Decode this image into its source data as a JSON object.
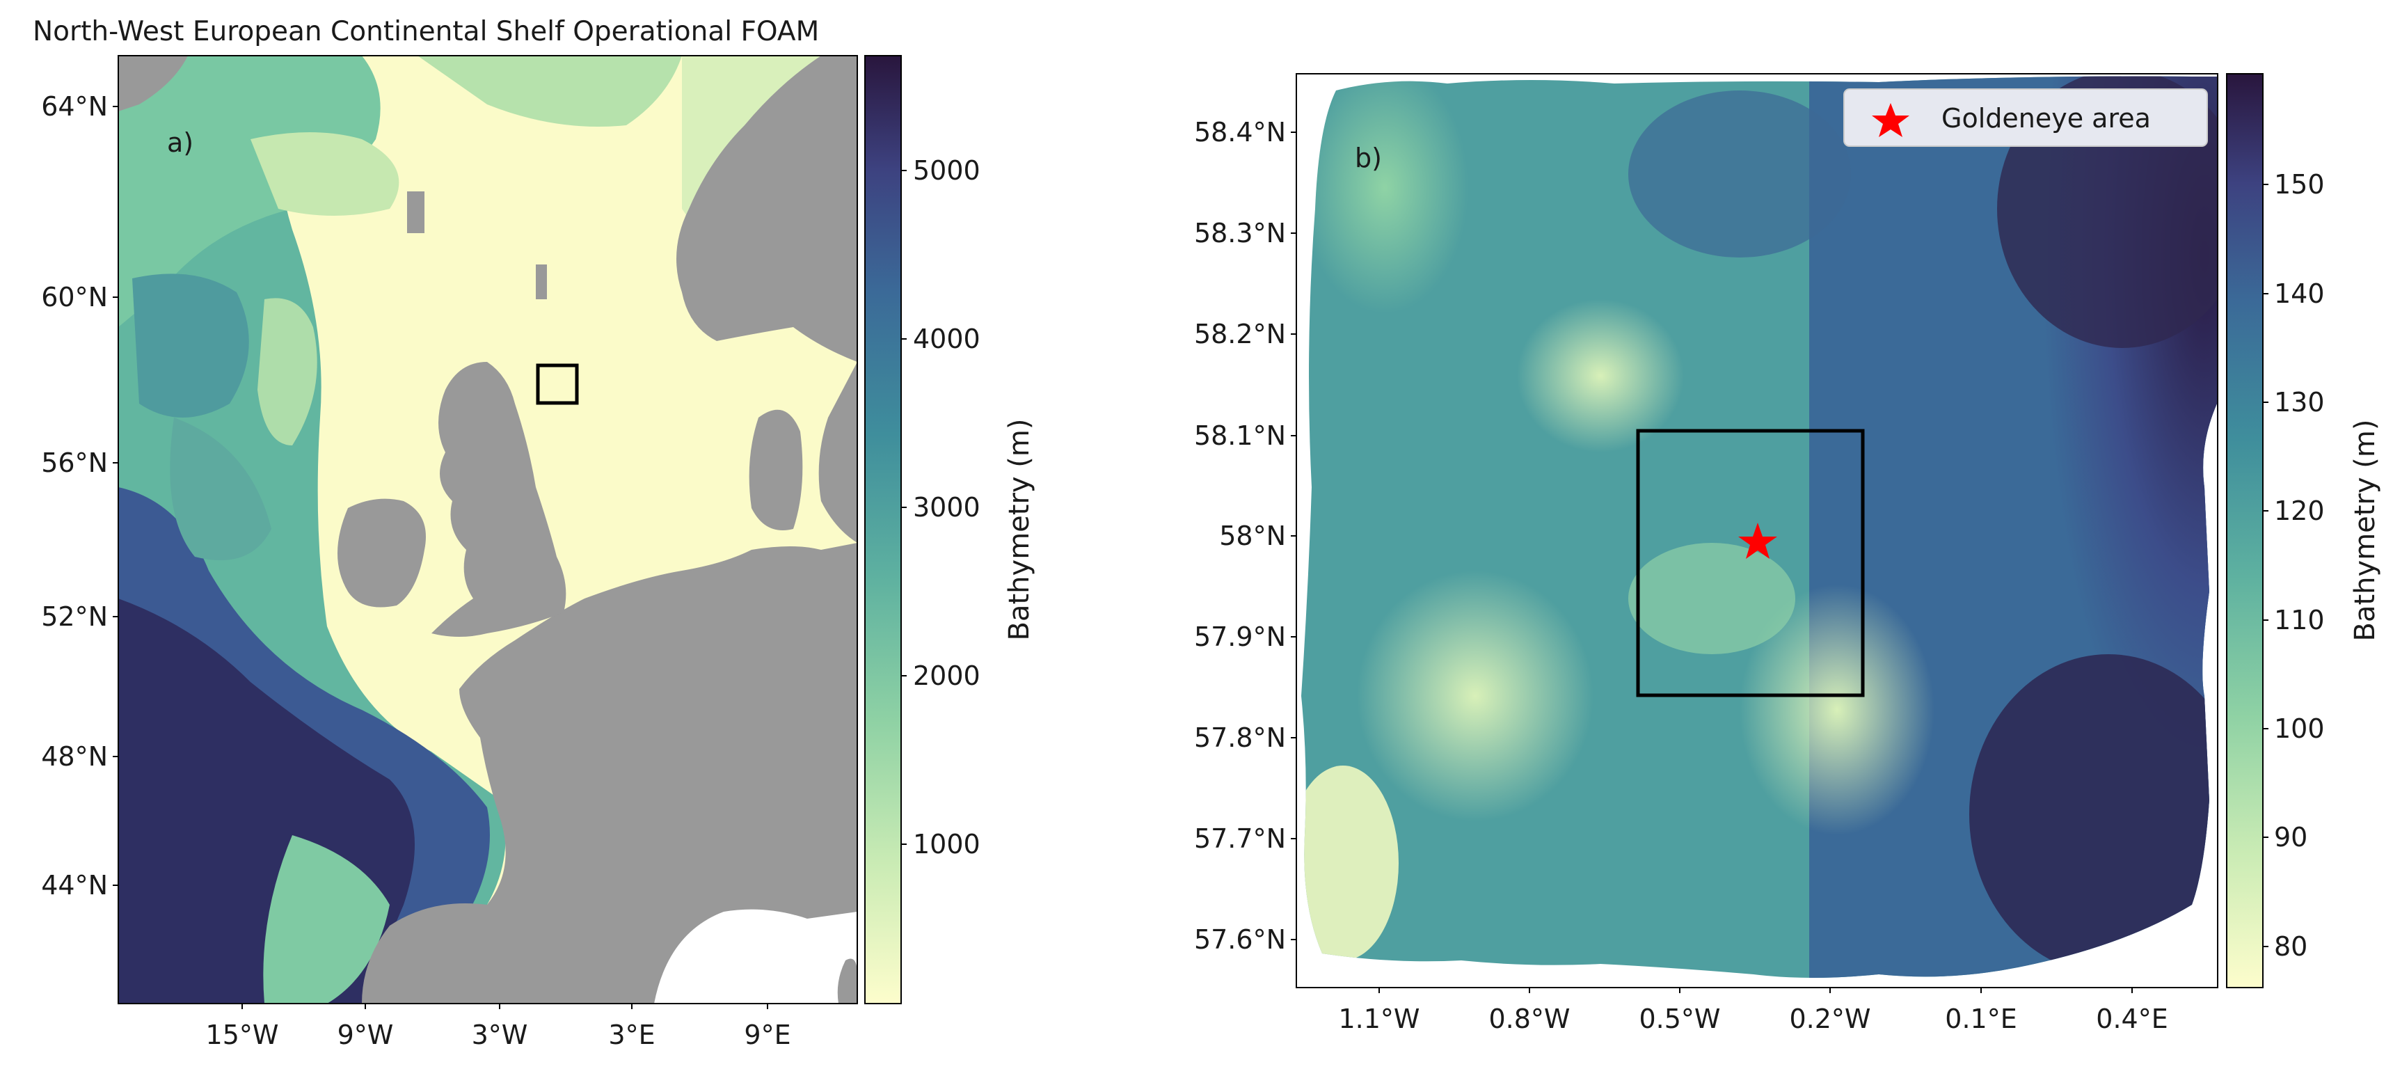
{
  "title": "North-West European Continental Shelf Operational FOAM",
  "panel_a": {
    "label": "a)",
    "x_ticks": [
      "15°W",
      "9°W",
      "3°W",
      "3°E",
      "9°E"
    ],
    "y_ticks": [
      "64°N",
      "60°N",
      "56°N",
      "52°N",
      "48°N",
      "44°N"
    ],
    "colorbar": {
      "label": "Bathymetry (m)",
      "ticks": [
        "5000",
        "4000",
        "3000",
        "2000",
        "1000"
      ],
      "range": [
        0,
        5600
      ],
      "colormap": "deep"
    },
    "inset_box": {
      "lon_range": [
        -1.2,
        0.5
      ],
      "lat_range": [
        57.6,
        58.4
      ]
    }
  },
  "panel_b": {
    "label": "b)",
    "x_ticks": [
      "1.1°W",
      "0.8°W",
      "0.5°W",
      "0.2°W",
      "0.1°E",
      "0.4°E"
    ],
    "y_ticks": [
      "58.4°N",
      "58.3°N",
      "58.2°N",
      "58.1°N",
      "58°N",
      "57.9°N",
      "57.8°N",
      "57.7°N",
      "57.6°N"
    ],
    "colorbar": {
      "label": "Bathymetry (m)",
      "ticks": [
        "150",
        "140",
        "130",
        "120",
        "110",
        "100",
        "90",
        "80"
      ],
      "range": [
        76,
        160
      ],
      "colormap": "deep"
    },
    "legend": {
      "label": "Goldeneye area",
      "marker": "red-star",
      "color": "#ff0000"
    },
    "star": {
      "lon": -0.38,
      "lat": 58.0
    },
    "box": {
      "lon_range": [
        -0.6,
        -0.15
      ],
      "lat_range": [
        57.88,
        58.1
      ]
    }
  },
  "colors": {
    "land": "#999999",
    "shallow": "#fdfdcc",
    "deep": "#29163d",
    "star": "#ff0000"
  }
}
